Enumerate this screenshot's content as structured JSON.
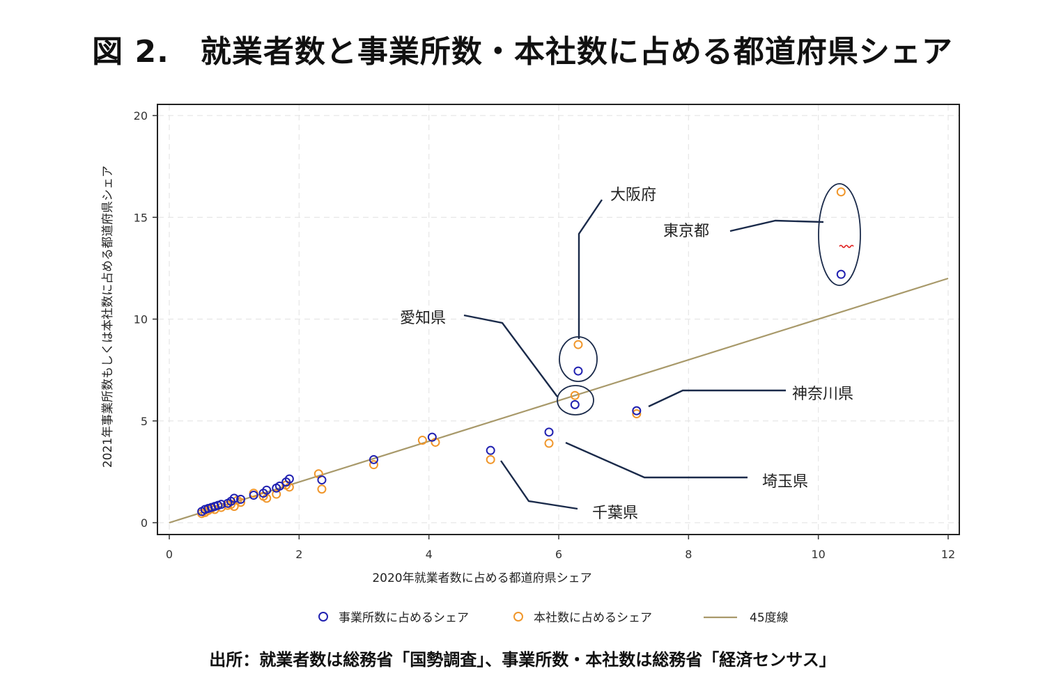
{
  "title": "図 2.　就業者数と事業所数・本社数に占める都道府県シェア",
  "source": "出所：就業者数は総務省「国勢調査」、事業所数・本社数は総務省「経済センサス」",
  "colors": {
    "series1": "#2020b0",
    "series2": "#f0962a",
    "line45": "#a8996a",
    "annotation": "#1a2a4a",
    "ellipse": "#1a2a4a"
  },
  "chart_data": {
    "type": "scatter",
    "xlabel": "2020年就業者数に占める都道府県シェア",
    "ylabel": "2021年事業所数もしくは本社数に占める都道府県シェア",
    "xlim": [
      0,
      12
    ],
    "ylim": [
      0,
      20
    ],
    "xticks": [
      0,
      2,
      4,
      6,
      8,
      10,
      12
    ],
    "yticks": [
      0,
      5,
      10,
      15,
      20
    ],
    "grid": true,
    "legend_position": "bottom",
    "series": [
      {
        "name": "事業所数に占めるシェア",
        "marker": "hollow-circle",
        "points": [
          [
            10.35,
            12.2
          ],
          [
            6.3,
            7.45
          ],
          [
            6.25,
            5.8
          ],
          [
            7.2,
            5.5
          ],
          [
            5.85,
            4.45
          ],
          [
            4.95,
            3.55
          ],
          [
            4.05,
            4.2
          ],
          [
            3.15,
            3.1
          ],
          [
            2.35,
            2.1
          ],
          [
            1.85,
            2.15
          ],
          [
            1.8,
            2.0
          ],
          [
            1.7,
            1.8
          ],
          [
            1.65,
            1.7
          ],
          [
            1.5,
            1.6
          ],
          [
            1.45,
            1.45
          ],
          [
            1.3,
            1.35
          ],
          [
            1.1,
            1.15
          ],
          [
            1.0,
            1.2
          ],
          [
            0.95,
            1.05
          ],
          [
            0.9,
            0.95
          ],
          [
            0.8,
            0.9
          ],
          [
            0.75,
            0.85
          ],
          [
            0.7,
            0.8
          ],
          [
            0.65,
            0.75
          ],
          [
            0.6,
            0.7
          ],
          [
            0.55,
            0.65
          ],
          [
            0.5,
            0.55
          ]
        ]
      },
      {
        "name": "本社数に占めるシェア",
        "marker": "hollow-circle",
        "points": [
          [
            10.35,
            16.25
          ],
          [
            6.3,
            8.75
          ],
          [
            6.25,
            6.25
          ],
          [
            7.2,
            5.35
          ],
          [
            5.85,
            3.9
          ],
          [
            4.95,
            3.1
          ],
          [
            4.1,
            3.95
          ],
          [
            3.9,
            4.05
          ],
          [
            3.15,
            2.85
          ],
          [
            2.35,
            1.65
          ],
          [
            2.3,
            2.4
          ],
          [
            1.85,
            1.75
          ],
          [
            1.8,
            1.85
          ],
          [
            1.65,
            1.4
          ],
          [
            1.5,
            1.2
          ],
          [
            1.45,
            1.3
          ],
          [
            1.3,
            1.45
          ],
          [
            1.1,
            1.0
          ],
          [
            1.05,
            1.1
          ],
          [
            1.0,
            0.8
          ],
          [
            0.95,
            0.9
          ],
          [
            0.9,
            0.85
          ],
          [
            0.8,
            0.75
          ],
          [
            0.7,
            0.65
          ],
          [
            0.65,
            0.7
          ],
          [
            0.6,
            0.6
          ],
          [
            0.55,
            0.5
          ],
          [
            0.5,
            0.45
          ]
        ]
      },
      {
        "name": "45度線",
        "marker": "line",
        "points": [
          [
            0,
            0
          ],
          [
            12,
            12
          ]
        ]
      }
    ],
    "annotations": [
      {
        "text": "東京都"
      },
      {
        "text": "大阪府"
      },
      {
        "text": "愛知県"
      },
      {
        "text": "神奈川県"
      },
      {
        "text": "埼玉県"
      },
      {
        "text": "千葉県"
      }
    ]
  }
}
